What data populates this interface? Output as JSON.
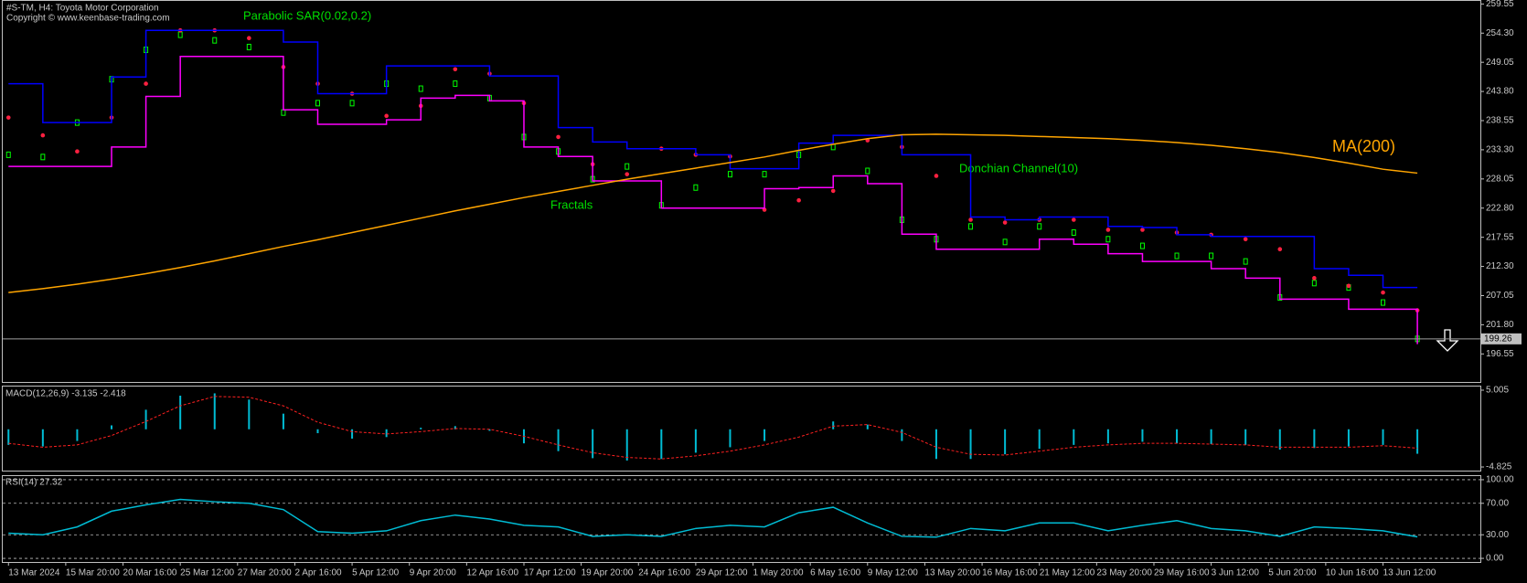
{
  "chart_data": [
    {
      "type": "price",
      "title": "#S-TM, H4:  Toyota Motor Corporation",
      "subtitle": "Copyright © www.keenbase-trading.com",
      "fractals_label": "Fractals",
      "x": [
        0,
        6,
        12,
        18,
        24,
        30,
        36,
        42,
        48,
        54,
        60,
        66,
        72,
        78,
        84,
        90,
        96,
        102,
        108,
        114,
        120,
        126,
        132,
        138,
        144,
        150,
        156,
        162,
        168,
        174,
        180,
        186,
        192,
        198,
        204,
        210,
        216,
        222,
        228,
        234,
        240,
        246
      ],
      "ylim": [
        191.5,
        260.1
      ],
      "yticks": [
        259.55,
        {
          "value": 254.3,
          "label": "254.30"
        },
        249.05,
        {
          "value": 243.8,
          "label": "243.80"
        },
        238.55,
        {
          "value": 233.3,
          "label": "233.30"
        },
        228.05,
        {
          "value": 222.8,
          "label": "222.80"
        },
        217.55,
        {
          "value": 212.3,
          "label": "212.30"
        },
        207.05,
        {
          "value": 201.8,
          "label": "201.80"
        },
        196.55
      ],
      "last_price": 199.26,
      "series": [
        {
          "style": "bars",
          "color": "#00ff00",
          "values": [
            232.4,
            232,
            238.2,
            246,
            251.3,
            254,
            253,
            251.8,
            240,
            241.7,
            241.7,
            245.2,
            244.3,
            245.2,
            242.6,
            235.6,
            233,
            228,
            230.3,
            223.3,
            226.5,
            228.9,
            228.9,
            232.4,
            233.8,
            229.5,
            220.7,
            217.2,
            219.5,
            216.7,
            219.5,
            218.4,
            217.2,
            216,
            214.2,
            214.2,
            213.2,
            206.7,
            209.3,
            208.5,
            205.8,
            199.26
          ]
        },
        {
          "name": "Parabolic SAR(0.02,0.2)",
          "style": "dots",
          "color": "#ff2040",
          "values": [
            239.1,
            235.9,
            233,
            239.1,
            245.2,
            254.8,
            254.8,
            253.4,
            248.2,
            245.2,
            243.4,
            239.4,
            241.2,
            247.8,
            247,
            241.7,
            235.6,
            230.7,
            228.9,
            233.5,
            232.4,
            232.1,
            222.5,
            224.2,
            225.9,
            235,
            233.8,
            228.6,
            220.7,
            220.2,
            220.7,
            220.7,
            218.9,
            218.9,
            218.4,
            218,
            217.2,
            215.4,
            210.2,
            208.8,
            207.6,
            204.4
          ]
        },
        {
          "name": "Donchian Channel(10)",
          "style": "step",
          "color": "#0000ff",
          "values": [
            245.2,
            238.2,
            238.2,
            246.4,
            254.8,
            254.8,
            254.8,
            254.8,
            252.7,
            243.4,
            243.4,
            248.4,
            248.4,
            248.4,
            246.6,
            246.6,
            237.3,
            234.7,
            233.5,
            233.5,
            232.4,
            229.9,
            229.9,
            234.5,
            235.9,
            235.9,
            232.4,
            232.4,
            221.2,
            220.7,
            221.2,
            221.2,
            219.5,
            219.3,
            218,
            217.7,
            217.7,
            217.7,
            211.9,
            210.7,
            208.5,
            208.5
          ]
        },
        {
          "style": "step",
          "color": "#ff00ff",
          "values": [
            230.3,
            230.3,
            230.3,
            233.8,
            242.9,
            250.1,
            250.1,
            250.1,
            240.5,
            237.9,
            237.9,
            238.7,
            242.6,
            243.1,
            242.1,
            233.8,
            232.1,
            227.7,
            227.7,
            222.8,
            222.8,
            222.8,
            226.3,
            226.5,
            228.6,
            227.2,
            218.1,
            215.4,
            215.4,
            215.4,
            217.2,
            216.3,
            214.6,
            213.2,
            213.2,
            211.9,
            210.2,
            206.4,
            206.4,
            204.6,
            204.6,
            198.3
          ]
        },
        {
          "name": "MA(200)",
          "style": "line",
          "color": "#ffa500",
          "values": [
            207.6,
            208.3,
            209.1,
            210,
            211,
            212.1,
            213.3,
            214.6,
            215.9,
            217.1,
            218.4,
            219.7,
            221,
            222.3,
            223.5,
            224.7,
            225.8,
            226.9,
            228,
            229,
            230,
            231,
            232,
            233.2,
            234.3,
            235.3,
            236,
            236.1,
            236,
            235.9,
            235.7,
            235.5,
            235.3,
            235,
            234.6,
            234.1,
            233.5,
            232.8,
            231.9,
            230.9,
            229.8,
            229.1
          ]
        }
      ]
    },
    {
      "type": "macd",
      "title": "MACD(12,26,9) -3.135 -2.418",
      "x": [
        0,
        6,
        12,
        18,
        24,
        30,
        36,
        42,
        48,
        54,
        60,
        66,
        72,
        78,
        84,
        90,
        96,
        102,
        108,
        114,
        120,
        126,
        132,
        138,
        144,
        150,
        156,
        162,
        168,
        174,
        180,
        186,
        192,
        198,
        204,
        210,
        216,
        222,
        228,
        234,
        240,
        246
      ],
      "ylim": [
        -5.29,
        5.47
      ],
      "yticks": [
        5.005,
        -4.825
      ],
      "series": [
        {
          "style": "histogram",
          "color": "#00bcd4",
          "values": [
            -2,
            -2.2,
            -1.5,
            0.5,
            2.5,
            4.3,
            4.6,
            3.8,
            2,
            -0.5,
            -1.2,
            -1,
            0.2,
            0.4,
            -0.2,
            -1.8,
            -2.8,
            -3.7,
            -4,
            -3.8,
            -3,
            -2.3,
            -1.5,
            0,
            1,
            0.6,
            -1.5,
            -3.8,
            -3.8,
            -3.2,
            -2.5,
            -2,
            -1.8,
            -1.6,
            -1.8,
            -1.9,
            -2,
            -2.6,
            -2.4,
            -2.2,
            -2,
            -3.135
          ]
        },
        {
          "style": "dashed",
          "color": "#ff2020",
          "values": [
            -1.8,
            -2.3,
            -2,
            -0.8,
            1,
            3,
            4.2,
            4.1,
            3,
            0.9,
            -0.3,
            -0.6,
            -0.3,
            0.1,
            0,
            -0.9,
            -2,
            -3,
            -3.6,
            -3.8,
            -3.4,
            -2.8,
            -2,
            -1,
            0.4,
            0.6,
            -0.4,
            -2.3,
            -3.2,
            -3.3,
            -2.8,
            -2.3,
            -2,
            -1.8,
            -1.8,
            -1.9,
            -2,
            -2.3,
            -2.3,
            -2.3,
            -2.1,
            -2.418
          ]
        }
      ]
    },
    {
      "type": "rsi",
      "title": "RSI(14) 27.32",
      "x": [
        0,
        6,
        12,
        18,
        24,
        30,
        36,
        42,
        48,
        54,
        60,
        66,
        72,
        78,
        84,
        90,
        96,
        102,
        108,
        114,
        120,
        126,
        132,
        138,
        144,
        150,
        156,
        162,
        168,
        174,
        180,
        186,
        192,
        198,
        204,
        210,
        216,
        222,
        228,
        234,
        240,
        246
      ],
      "xlim": [
        -1,
        257
      ],
      "xticks": [
        {
          "value": 0,
          "label": "13 Mar 2024"
        },
        {
          "value": 10,
          "label": "15 Mar 20:00"
        },
        {
          "value": 20,
          "label": "20 Mar 16:00"
        },
        {
          "value": 30,
          "label": "25 Mar 12:00"
        },
        {
          "value": 40,
          "label": "27 Mar 20:00"
        },
        {
          "value": 50,
          "label": "2 Apr 16:00"
        },
        {
          "value": 60,
          "label": "5 Apr 12:00"
        },
        {
          "value": 70,
          "label": "9 Apr 20:00"
        },
        {
          "value": 80,
          "label": "12 Apr 16:00"
        },
        {
          "value": 90,
          "label": "17 Apr 12:00"
        },
        {
          "value": 100,
          "label": "19 Apr 20:00"
        },
        {
          "value": 110,
          "label": "24 Apr 16:00"
        },
        {
          "value": 120,
          "label": "29 Apr 12:00"
        },
        {
          "value": 130,
          "label": "1 May 20:00"
        },
        {
          "value": 140,
          "label": "6 May 16:00"
        },
        {
          "value": 150,
          "label": "9 May 12:00"
        },
        {
          "value": 160,
          "label": "13 May 20:00"
        },
        {
          "value": 170,
          "label": "16 May 16:00"
        },
        {
          "value": 180,
          "label": "21 May 12:00"
        },
        {
          "value": 190,
          "label": "23 May 20:00"
        },
        {
          "value": 200,
          "label": "29 May 16:00"
        },
        {
          "value": 210,
          "label": "3 Jun 12:00"
        },
        {
          "value": 220,
          "label": "5 Jun 20:00"
        },
        {
          "value": 230,
          "label": "10 Jun 16:00"
        },
        {
          "value": 240,
          "label": "13 Jun 12:00"
        }
      ],
      "ylim": [
        -4.6,
        104.6
      ],
      "yticks": [
        {
          "value": 100,
          "label": "100.00"
        },
        {
          "value": 70,
          "label": "70.00"
        },
        {
          "value": 30,
          "label": "30.00"
        },
        {
          "value": 0,
          "label": "0.00"
        }
      ],
      "grid": true,
      "series": [
        {
          "style": "line",
          "color": "#00bcd4",
          "values": [
            32,
            30,
            40,
            60,
            68,
            75,
            72,
            70,
            62,
            34,
            32,
            35,
            48,
            55,
            50,
            42,
            40,
            28,
            30,
            28,
            38,
            42,
            40,
            58,
            65,
            45,
            28,
            27,
            38,
            35,
            45,
            45,
            35,
            42,
            48,
            38,
            35,
            28,
            40,
            38,
            35,
            27.32
          ]
        }
      ]
    }
  ]
}
